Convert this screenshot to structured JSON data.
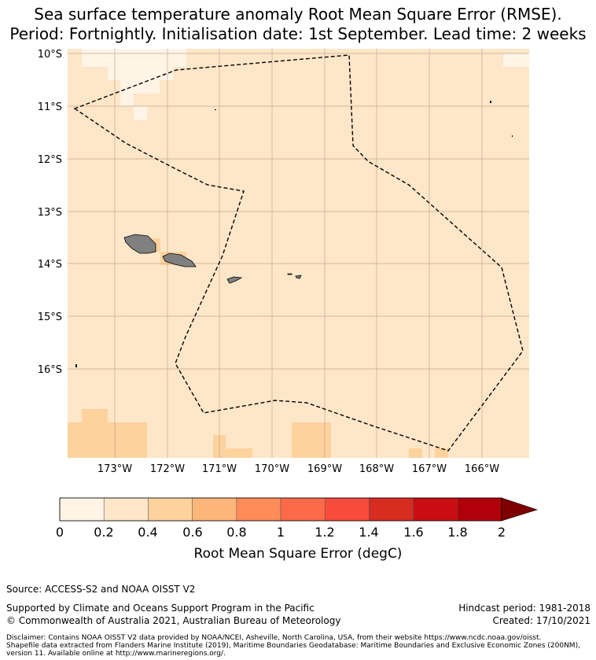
{
  "title": {
    "line1": "Sea surface temperature anomaly Root Mean Square Error (RMSE).",
    "line2": "Period: Fortnightly. Initialisation date: 1st September. Lead time: 2 weeks"
  },
  "map": {
    "lat_labels": [
      "10°S",
      "11°S",
      "12°S",
      "13°S",
      "14°S",
      "15°S",
      "16°S"
    ],
    "lon_labels": [
      "173°W",
      "172°W",
      "171°W",
      "170°W",
      "169°W",
      "168°W",
      "167°W",
      "166°W"
    ],
    "field_color": "#fee6c8",
    "land_color": "#808080",
    "boundary_style": "dashed black"
  },
  "colorbar": {
    "ticks": [
      "0",
      "0.2",
      "0.4",
      "0.6",
      "0.8",
      "1",
      "1.2",
      "1.4",
      "1.6",
      "1.8",
      "2"
    ],
    "colors": [
      "#fff4e6",
      "#fee6c8",
      "#fdd29c",
      "#fdb67a",
      "#fd8c56",
      "#fd6a4a",
      "#f74b3c",
      "#d72c20",
      "#c90d13",
      "#b00009"
    ],
    "extend_color": "#7f0000",
    "label": "Root Mean Square Error (degC)"
  },
  "footer": {
    "source": "Source: ACCESS-S2 and NOAA OISST V2",
    "supported": "Supported by Climate and Oceans Support Program in the Pacific",
    "copyright": "© Commonwealth of Australia 2021, Australian Bureau of Meteorology",
    "hindcast": "Hindcast period: 1981-2018",
    "created": "Created: 17/10/2021",
    "disclaimer1": "Disclaimer: Contains NOAA OISST V2 data provided by NOAA/NCEI, Asheville, North Carolina, USA, from their website https://www.ncdc.noaa.gov/oisst.",
    "disclaimer2": "Shapefile data extracted from Flanders Marine Institute (2019), Maritime Boundaries Geodatabase: Maritime Boundaries and Exclusive Economic Zones (200NM),",
    "disclaimer3": "version 11. Available online at http://www.marineregions.org/."
  }
}
